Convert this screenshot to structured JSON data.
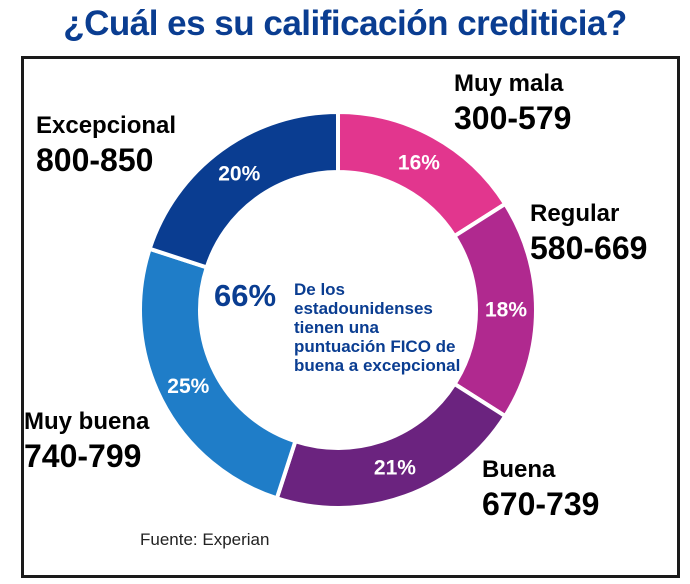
{
  "title": "¿Cuál es su calificación crediticia?",
  "center": {
    "percent": "66%",
    "text": "De los estadounidenses tienen una puntuación FICO de buena a excepcional"
  },
  "source": "Fuente: Experian",
  "chart_data": {
    "type": "pie",
    "donut": true,
    "title": "¿Cuál es su calificación crediticia?",
    "categories": [
      "Muy mala",
      "Regular",
      "Buena",
      "Muy buena",
      "Excepcional"
    ],
    "ranges": [
      "300-579",
      "580-669",
      "670-739",
      "740-799",
      "800-850"
    ],
    "values": [
      16,
      18,
      21,
      25,
      20
    ],
    "value_labels": [
      "16%",
      "18%",
      "21%",
      "25%",
      "20%"
    ],
    "colors": [
      "#e2368e",
      "#b0298f",
      "#6b237f",
      "#1f7dc8",
      "#0a3d91"
    ],
    "start": "12 o'clock",
    "direction": "clockwise",
    "legend": "labels outside slices"
  }
}
